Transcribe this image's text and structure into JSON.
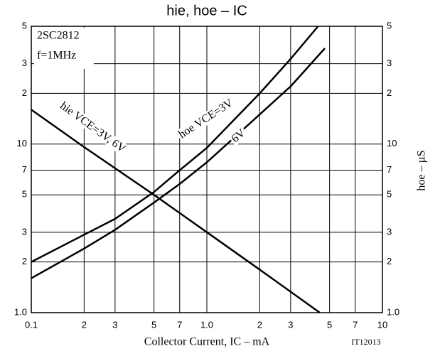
{
  "chart_data": {
    "type": "line",
    "title": "hie, hoe – IC",
    "x_label": "Collector Current, IC – mA",
    "y2_label": "hoe – µS",
    "annotations": [
      "2SC2812",
      "f=1MHz",
      "IT12013"
    ],
    "log_x": true,
    "log_y": true,
    "grid": true,
    "xlim": [
      0.1,
      10
    ],
    "xticks": [
      0.1,
      {
        "value": 0.2,
        "label": "2"
      },
      {
        "value": 0.3,
        "label": "3"
      },
      {
        "value": 0.5,
        "label": "5"
      },
      {
        "value": 0.7,
        "label": "7"
      },
      {
        "value": 1,
        "label": "1.0"
      },
      2,
      3,
      5,
      7,
      10
    ],
    "ylim": [
      1,
      50
    ],
    "yticks": [
      {
        "value": 1,
        "label": "1.0"
      },
      2,
      3,
      5,
      7,
      10,
      {
        "value": 20,
        "label": "2"
      },
      {
        "value": 30,
        "label": "3"
      },
      {
        "value": 50,
        "label": "5"
      }
    ],
    "series": [
      {
        "name": "hie VCE=3V, 6V",
        "color": "#000000",
        "x": [
          0.1,
          0.2,
          0.5,
          1,
          2,
          4.4
        ],
        "values": [
          16,
          9.6,
          5,
          3,
          1.8,
          1.0
        ]
      },
      {
        "name": "hoe VCE=3V",
        "color": "#000000",
        "x": [
          0.1,
          0.2,
          0.3,
          0.5,
          0.7,
          1,
          2,
          3,
          4.3
        ],
        "values": [
          2,
          2.9,
          3.6,
          5.2,
          7,
          9.5,
          20,
          32,
          50
        ]
      },
      {
        "name": "6V",
        "color": "#000000",
        "x": [
          0.1,
          0.2,
          0.3,
          0.5,
          0.7,
          1,
          2,
          3,
          4.7
        ],
        "values": [
          1.6,
          2.4,
          3.1,
          4.5,
          5.8,
          7.8,
          15,
          22,
          37
        ]
      }
    ]
  }
}
